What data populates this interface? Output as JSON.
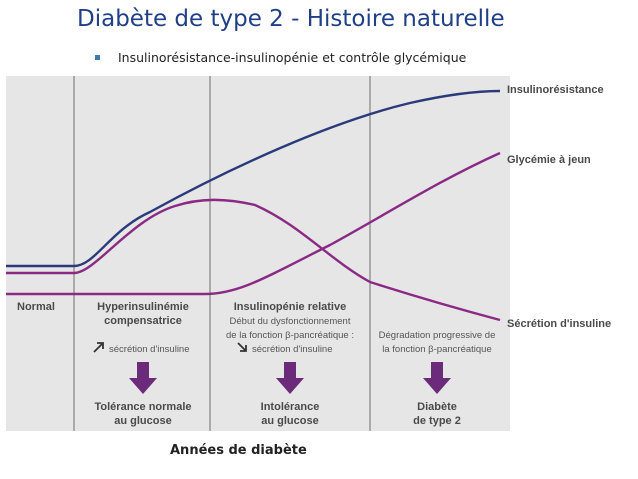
{
  "slide": {
    "title": "Diabète de type 2 - Histoire naturelle",
    "subtitle": "Insulinorésistance-insulinopénie et  contrôle glycémique"
  },
  "diagram": {
    "curves": [
      {
        "label": "Insulinorésistance",
        "color": "#2b3a7a"
      },
      {
        "label": "Glycémie à jeun",
        "color": "#8a2a85"
      },
      {
        "label": "Sécrétion d'insuline",
        "color": "#8a2a85"
      }
    ],
    "stages": [
      {
        "title": [
          "Normal"
        ],
        "notes": [],
        "outcome": []
      },
      {
        "title": [
          "Hyperinsulinémie",
          "compensatrice"
        ],
        "notes": [
          "sécrétion d'insuline"
        ],
        "note_arrow": "up-right",
        "outcome": [
          "Tolérance normale",
          "au glucose"
        ]
      },
      {
        "title": [
          "Insulinopénie relative"
        ],
        "notes": [
          "Début du dysfonctionnement",
          "de la fonction β-pancréatique :",
          "sécrétion d'insuline"
        ],
        "note_arrow": "down-right",
        "outcome": [
          "Intolérance",
          "au glucose"
        ]
      },
      {
        "title": [],
        "notes": [
          "Dégradation progressive de",
          "la fonction β-pancréatique"
        ],
        "outcome": [
          "Diabète",
          "de type 2"
        ]
      }
    ],
    "arrow_color": "#6b2a7a",
    "panel_color": "#e6e6e6"
  },
  "footer": {
    "label": "Années de diabète"
  }
}
